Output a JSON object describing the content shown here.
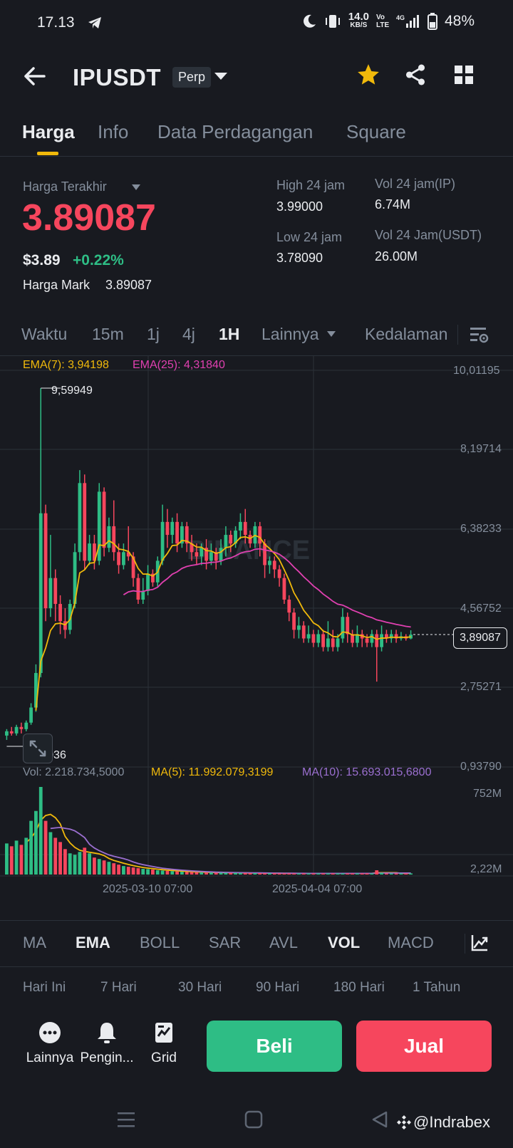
{
  "status_bar": {
    "time": "17.13",
    "net_speed": "14.0",
    "net_unit": "KB/S",
    "volte": "Vo LTE",
    "signal": "4G",
    "battery": "48%"
  },
  "header": {
    "symbol": "IPUSDT",
    "badge": "Perp",
    "icons": [
      "back-arrow-icon",
      "chevron-down-icon",
      "star-icon",
      "share-icon",
      "grid-icon"
    ],
    "star_color": "#f0b90b"
  },
  "tabs": [
    {
      "label": "Harga",
      "active": true
    },
    {
      "label": "Info",
      "active": false
    },
    {
      "label": "Data Perdagangan",
      "active": false
    },
    {
      "label": "Square",
      "active": false
    }
  ],
  "price": {
    "last_label": "Harga Terakhir",
    "last_price": "3.89087",
    "usd_price": "$3.89",
    "change": "+0.22%",
    "mark_label": "Harga Mark",
    "mark_price": "3.89087",
    "high_label": "High 24 jam",
    "high_value": "3.99000",
    "low_label": "Low 24 jam",
    "low_value": "3.78090",
    "vol_ip_label": "Vol 24 jam(IP)",
    "vol_ip_value": "6.74M",
    "vol_usdt_label": "Vol 24 Jam(USDT)",
    "vol_usdt_value": "26.00M"
  },
  "intervals": [
    {
      "label": "Waktu",
      "active": false
    },
    {
      "label": "15m",
      "active": false
    },
    {
      "label": "1j",
      "active": false
    },
    {
      "label": "4j",
      "active": false
    },
    {
      "label": "1H",
      "active": true
    },
    {
      "label": "Lainnya",
      "active": false
    },
    {
      "label": "Kedalaman",
      "active": false
    }
  ],
  "chart": {
    "ema7_label": "EMA(7): 3,94198",
    "ema25_label": "EMA(25): 4,31840",
    "watermark": "BINANCE",
    "price_ticks": [
      "10,01195",
      "8,19714",
      "6,38233",
      "4,56752",
      "2,75271",
      "0,93790"
    ],
    "high_marker": "9,59949",
    "low_marker": "1,35036",
    "current_price": "3,89087",
    "vol_label": "Vol: 2.218.734,5000",
    "ma5_label": "MA(5): 11.992.079,3199",
    "ma10_label": "MA(10): 15.693.015,6800",
    "vol_ticks": [
      "752M",
      "2,22M"
    ],
    "date_labels": [
      "2025-03-10 07:00",
      "2025-04-04 07:00"
    ],
    "colors": {
      "up": "#2ebd85",
      "down": "#f6465d",
      "ema7": "#f0b90b",
      "ema25": "#e040b0",
      "ma10": "#9b6fd0"
    }
  },
  "chart_data": {
    "type": "candlestick",
    "x_labels": [
      "2025-03-10 07:00",
      "2025-04-04 07:00"
    ],
    "ylim": [
      0.9379,
      10.01195
    ],
    "candles": [
      [
        1.55,
        1.65,
        1.45,
        1.7
      ],
      [
        1.65,
        1.6,
        1.55,
        1.75
      ],
      [
        1.6,
        1.75,
        1.55,
        1.8
      ],
      [
        1.75,
        1.7,
        1.6,
        1.85
      ],
      [
        1.7,
        1.85,
        1.65,
        1.9
      ],
      [
        1.85,
        2.2,
        1.8,
        2.3
      ],
      [
        2.2,
        3.0,
        2.1,
        3.2
      ],
      [
        3.0,
        6.7,
        2.9,
        9.6
      ],
      [
        6.7,
        4.5,
        4.2,
        6.9
      ],
      [
        4.5,
        5.2,
        4.3,
        6.2
      ],
      [
        5.2,
        4.6,
        4.2,
        5.4
      ],
      [
        4.6,
        4.2,
        3.9,
        4.8
      ],
      [
        4.2,
        4.0,
        3.8,
        4.5
      ],
      [
        4.0,
        4.6,
        3.9,
        4.7
      ],
      [
        4.6,
        5.8,
        4.5,
        6.0
      ],
      [
        5.8,
        7.4,
        5.6,
        7.7
      ],
      [
        7.4,
        5.6,
        5.4,
        7.6
      ],
      [
        5.6,
        6.0,
        5.5,
        6.2
      ],
      [
        6.0,
        5.6,
        5.4,
        6.2
      ],
      [
        5.6,
        7.2,
        5.5,
        7.4
      ],
      [
        7.2,
        5.9,
        5.7,
        7.3
      ],
      [
        5.9,
        6.4,
        5.8,
        6.6
      ],
      [
        6.4,
        5.8,
        5.6,
        7.0
      ],
      [
        5.8,
        5.5,
        5.3,
        6.0
      ],
      [
        5.5,
        5.8,
        5.4,
        6.0
      ],
      [
        5.8,
        5.7,
        5.6,
        6.4
      ],
      [
        5.7,
        5.2,
        5.0,
        5.8
      ],
      [
        5.2,
        4.7,
        4.6,
        5.3
      ],
      [
        4.7,
        4.9,
        4.6,
        5.2
      ],
      [
        4.9,
        5.3,
        4.8,
        5.5
      ],
      [
        5.3,
        5.1,
        5.0,
        5.4
      ],
      [
        5.1,
        5.6,
        5.0,
        5.7
      ],
      [
        5.6,
        6.5,
        5.5,
        6.9
      ],
      [
        6.5,
        6.2,
        5.9,
        6.8
      ],
      [
        6.2,
        6.5,
        6.0,
        6.6
      ],
      [
        6.5,
        6.0,
        5.8,
        6.7
      ],
      [
        6.0,
        6.4,
        5.9,
        6.5
      ],
      [
        6.4,
        6.0,
        5.8,
        6.5
      ],
      [
        6.0,
        5.8,
        5.6,
        6.2
      ],
      [
        5.8,
        5.7,
        5.5,
        6.0
      ],
      [
        5.7,
        5.9,
        5.5,
        6.0
      ],
      [
        5.9,
        5.6,
        5.4,
        6.1
      ],
      [
        5.6,
        5.8,
        5.5,
        6.0
      ],
      [
        5.8,
        5.6,
        5.4,
        5.9
      ],
      [
        5.6,
        5.9,
        5.5,
        6.1
      ],
      [
        5.9,
        6.2,
        5.7,
        6.4
      ],
      [
        6.2,
        6.0,
        5.8,
        6.3
      ],
      [
        6.0,
        6.3,
        5.9,
        6.4
      ],
      [
        6.3,
        6.5,
        6.1,
        6.7
      ],
      [
        6.5,
        6.2,
        6.0,
        6.8
      ],
      [
        6.2,
        6.0,
        5.9,
        6.3
      ],
      [
        6.0,
        6.4,
        5.9,
        6.5
      ],
      [
        6.4,
        6.0,
        5.7,
        6.5
      ],
      [
        6.0,
        5.5,
        5.2,
        6.1
      ],
      [
        5.5,
        5.6,
        5.3,
        5.7
      ],
      [
        5.6,
        5.4,
        5.2,
        5.7
      ],
      [
        5.4,
        5.2,
        5.0,
        5.5
      ],
      [
        5.2,
        4.7,
        4.6,
        5.3
      ],
      [
        4.7,
        4.4,
        4.2,
        4.8
      ],
      [
        4.4,
        4.0,
        3.8,
        4.5
      ],
      [
        4.0,
        4.1,
        3.8,
        4.3
      ],
      [
        4.1,
        3.8,
        3.7,
        4.2
      ],
      [
        3.8,
        3.9,
        3.7,
        4.1
      ],
      [
        3.9,
        3.7,
        3.6,
        4.0
      ],
      [
        3.7,
        3.9,
        3.6,
        4.0
      ],
      [
        3.9,
        3.6,
        3.5,
        4.0
      ],
      [
        3.6,
        3.8,
        3.5,
        4.2
      ],
      [
        3.8,
        3.6,
        3.5,
        4.0
      ],
      [
        3.6,
        3.8,
        3.5,
        3.9
      ],
      [
        3.8,
        4.3,
        3.7,
        4.5
      ],
      [
        4.3,
        3.9,
        3.7,
        4.4
      ],
      [
        3.9,
        3.7,
        3.6,
        4.0
      ],
      [
        3.7,
        3.9,
        3.6,
        4.1
      ],
      [
        3.9,
        3.8,
        3.6,
        4.0
      ],
      [
        3.8,
        3.7,
        3.6,
        3.9
      ],
      [
        3.7,
        3.9,
        3.6,
        4.0
      ],
      [
        3.9,
        3.6,
        2.8,
        4.0
      ],
      [
        3.6,
        3.9,
        3.5,
        4.1
      ],
      [
        3.9,
        3.8,
        3.7,
        4.0
      ],
      [
        3.8,
        3.9,
        3.7,
        4.0
      ],
      [
        3.9,
        3.8,
        3.7,
        4.0
      ],
      [
        3.8,
        3.85,
        3.75,
        3.95
      ],
      [
        3.85,
        3.8,
        3.75,
        3.9
      ],
      [
        3.8,
        3.89,
        3.78,
        3.99
      ]
    ],
    "volume": [
      220,
      200,
      240,
      210,
      260,
      380,
      450,
      620,
      380,
      300,
      260,
      230,
      180,
      150,
      140,
      160,
      190,
      150,
      120,
      110,
      100,
      90,
      80,
      70,
      60,
      55,
      50,
      45,
      40,
      38,
      35,
      30,
      28,
      26,
      24,
      22,
      20,
      18,
      17,
      16,
      15,
      14,
      14,
      13,
      13,
      12,
      12,
      12,
      11,
      11,
      10,
      10,
      10,
      9,
      9,
      9,
      8,
      8,
      8,
      8,
      8,
      8,
      8,
      8,
      8,
      8,
      8,
      8,
      8,
      8,
      8,
      8,
      8,
      8,
      8,
      8,
      30,
      12,
      8,
      8,
      8,
      8,
      8,
      8
    ]
  },
  "indicator_tabs": [
    {
      "label": "MA",
      "active": false
    },
    {
      "label": "EMA",
      "active": true
    },
    {
      "label": "BOLL",
      "active": false
    },
    {
      "label": "SAR",
      "active": false
    },
    {
      "label": "AVL",
      "active": false
    },
    {
      "label": "VOL",
      "active": true
    },
    {
      "label": "MACD",
      "active": false
    }
  ],
  "periods": [
    "Hari Ini",
    "7 Hari",
    "30 Hari",
    "90 Hari",
    "180 Hari",
    "1 Tahun"
  ],
  "actions": {
    "more": "Lainnya",
    "alert": "Pengin...",
    "grid": "Grid",
    "buy": "Beli",
    "sell": "Jual",
    "buy_color": "#2ebd85",
    "sell_color": "#f6465d"
  },
  "watermark_user": "@Indrabex"
}
